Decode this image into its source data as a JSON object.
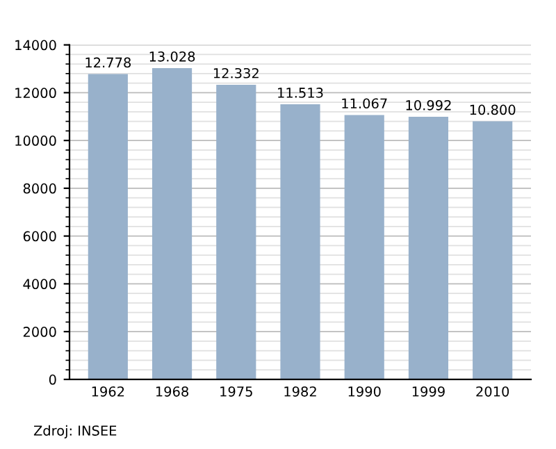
{
  "chart_data": {
    "type": "bar",
    "categories": [
      "1962",
      "1968",
      "1975",
      "1982",
      "1990",
      "1999",
      "2010"
    ],
    "values": [
      12778,
      13028,
      12332,
      11513,
      11067,
      10992,
      10800
    ],
    "value_labels": [
      "12.778",
      "13.028",
      "12.332",
      "11.513",
      "11.067",
      "10.992",
      "10.800"
    ],
    "color": "#98b1cb",
    "ylim": [
      0,
      14000
    ],
    "yticks": [
      0,
      2000,
      4000,
      6000,
      8000,
      10000,
      12000,
      14000
    ],
    "grid": "y",
    "annotations": [
      "Zdroj: INSEE"
    ]
  }
}
